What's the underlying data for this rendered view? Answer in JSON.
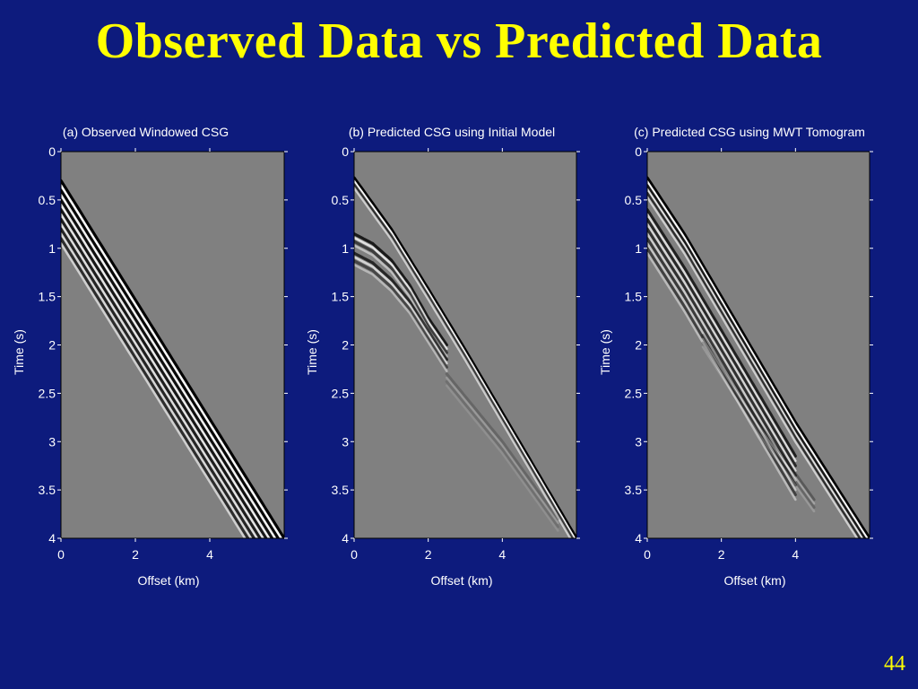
{
  "slide": {
    "title": "Observed Data vs Predicted Data",
    "page_number": "44"
  },
  "colors": {
    "background": "#0d1b7d",
    "title": "#ffff00",
    "text": "#ffffff",
    "panel_background": "#808080"
  },
  "chart_data": [
    {
      "type": "heatmap",
      "title": "(a) Observed Windowed CSG",
      "xlabel": "Offset (km)",
      "ylabel": "Time (s)",
      "xlim": [
        0,
        6
      ],
      "ylim": [
        0,
        4
      ],
      "y_reversed": true,
      "x_ticks": [
        0,
        2,
        4
      ],
      "y_ticks": [
        0,
        0.5,
        1,
        1.5,
        2,
        2.5,
        3,
        3.5,
        4
      ],
      "colormap": "gray",
      "events": [
        {
          "name": "first-arrival",
          "points": [
            [
              0,
              0.3
            ],
            [
              6,
              4.0
            ]
          ],
          "wavelet_cycles": 7,
          "cycle_spacing_s": 0.1,
          "amplitude": 1.0
        }
      ]
    },
    {
      "type": "heatmap",
      "title": "(b) Predicted CSG using Initial Model",
      "xlabel": "Offset (km)",
      "ylabel": "Time (s)",
      "xlim": [
        0,
        6
      ],
      "ylim": [
        0,
        4
      ],
      "y_reversed": true,
      "x_ticks": [
        0,
        2,
        4
      ],
      "y_ticks": [
        0,
        0.5,
        1,
        1.5,
        2,
        2.5,
        3,
        3.5,
        4
      ],
      "colormap": "gray",
      "events": [
        {
          "name": "direct-arrival",
          "points": [
            [
              0,
              0.27
            ],
            [
              1.0,
              0.8
            ],
            [
              2.0,
              1.42
            ],
            [
              3.0,
              2.05
            ],
            [
              4.0,
              2.7
            ],
            [
              5.0,
              3.35
            ],
            [
              6.0,
              4.0
            ]
          ],
          "wavelet_cycles": 2,
          "cycle_spacing_s": 0.07,
          "amplitude": 1.0
        },
        {
          "name": "reflection-1",
          "points": [
            [
              0,
              0.85
            ],
            [
              0.5,
              0.95
            ],
            [
              1.0,
              1.12
            ],
            [
              1.5,
              1.38
            ],
            [
              2.0,
              1.72
            ],
            [
              2.5,
              2.0
            ]
          ],
          "wavelet_cycles": 2,
          "cycle_spacing_s": 0.08,
          "amplitude": 0.8
        },
        {
          "name": "reflection-2",
          "points": [
            [
              0,
              1.05
            ],
            [
              0.5,
              1.15
            ],
            [
              1.0,
              1.32
            ],
            [
              1.5,
              1.55
            ],
            [
              2.0,
              1.85
            ],
            [
              2.5,
              2.15
            ]
          ],
          "wavelet_cycles": 2,
          "cycle_spacing_s": 0.08,
          "amplitude": 0.7
        },
        {
          "name": "faint-tail",
          "points": [
            [
              2.5,
              2.3
            ],
            [
              4.0,
              3.0
            ],
            [
              5.5,
              3.8
            ]
          ],
          "wavelet_cycles": 2,
          "cycle_spacing_s": 0.08,
          "amplitude": 0.2
        }
      ]
    },
    {
      "type": "heatmap",
      "title": "(c) Predicted CSG using MWT Tomogram",
      "xlabel": "Offset (km)",
      "ylabel": "Time (s)",
      "xlim": [
        0,
        6
      ],
      "ylim": [
        0,
        4
      ],
      "y_reversed": true,
      "x_ticks": [
        0,
        2,
        4
      ],
      "y_ticks": [
        0,
        0.5,
        1,
        1.5,
        2,
        2.5,
        3,
        3.5,
        4
      ],
      "colormap": "gray",
      "events": [
        {
          "name": "first-arrival",
          "points": [
            [
              0,
              0.27
            ],
            [
              1.0,
              0.85
            ],
            [
              2.0,
              1.5
            ],
            [
              3.0,
              2.15
            ],
            [
              4.0,
              2.8
            ],
            [
              5.0,
              3.4
            ],
            [
              6.0,
              4.0
            ]
          ],
          "wavelet_cycles": 3,
          "cycle_spacing_s": 0.08,
          "amplitude": 1.0
        },
        {
          "name": "later-arrivals",
          "points": [
            [
              0,
              0.6
            ],
            [
              1.0,
              1.2
            ],
            [
              2.0,
              1.85
            ],
            [
              3.0,
              2.5
            ],
            [
              4.0,
              3.15
            ]
          ],
          "wavelet_cycles": 5,
          "cycle_spacing_s": 0.1,
          "amplitude": 0.75
        },
        {
          "name": "faint-tail",
          "points": [
            [
              1.5,
              1.9
            ],
            [
              3.0,
              2.8
            ],
            [
              4.5,
              3.6
            ]
          ],
          "wavelet_cycles": 2,
          "cycle_spacing_s": 0.08,
          "amplitude": 0.3
        }
      ]
    }
  ]
}
